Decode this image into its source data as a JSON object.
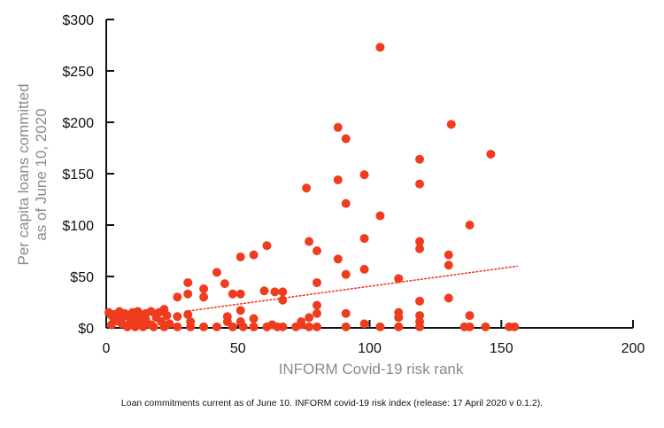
{
  "chart_data": {
    "type": "scatter",
    "xlabel": "INFORM Covid-19 risk rank",
    "ylabel": "Per capita loans committed\nas of June 10, 2020",
    "xlim": [
      0,
      200
    ],
    "ylim": [
      0,
      300
    ],
    "xticks": [
      0,
      50,
      100,
      150,
      200
    ],
    "yticks": [
      0,
      50,
      100,
      150,
      200,
      250,
      300
    ],
    "ytick_labels": [
      "$0",
      "$50",
      "$100",
      "$150",
      "$200",
      "$250",
      "$300"
    ],
    "grid": false,
    "legend": "none",
    "point_color": "#f03c1e",
    "trendline": {
      "style": "dotted",
      "color": "#f03c1e",
      "x": [
        30,
        156
      ],
      "y": [
        16,
        60
      ]
    },
    "points": [
      [
        1,
        15
      ],
      [
        2,
        12
      ],
      [
        2,
        3
      ],
      [
        3,
        8
      ],
      [
        3,
        13
      ],
      [
        4,
        11
      ],
      [
        5,
        6
      ],
      [
        5,
        16
      ],
      [
        6,
        10
      ],
      [
        6,
        4
      ],
      [
        7,
        14
      ],
      [
        8,
        12
      ],
      [
        8,
        1
      ],
      [
        9,
        5
      ],
      [
        10,
        15
      ],
      [
        10,
        8
      ],
      [
        11,
        1
      ],
      [
        12,
        16
      ],
      [
        12,
        11
      ],
      [
        13,
        5
      ],
      [
        14,
        1
      ],
      [
        15,
        14
      ],
      [
        15,
        8
      ],
      [
        17,
        16
      ],
      [
        17,
        3
      ],
      [
        18,
        1
      ],
      [
        19,
        10
      ],
      [
        20,
        15
      ],
      [
        21,
        6
      ],
      [
        22,
        1
      ],
      [
        22,
        18
      ],
      [
        23,
        12
      ],
      [
        24,
        4
      ],
      [
        27,
        1
      ],
      [
        27,
        11
      ],
      [
        27,
        30
      ],
      [
        31,
        44
      ],
      [
        31,
        33
      ],
      [
        31,
        13
      ],
      [
        32,
        1
      ],
      [
        32,
        6
      ],
      [
        37,
        38
      ],
      [
        37,
        30
      ],
      [
        37,
        1
      ],
      [
        42,
        54
      ],
      [
        42,
        1
      ],
      [
        45,
        43
      ],
      [
        46,
        11
      ],
      [
        46,
        6
      ],
      [
        48,
        33
      ],
      [
        48,
        1
      ],
      [
        51,
        33
      ],
      [
        51,
        17
      ],
      [
        51,
        6
      ],
      [
        51,
        69
      ],
      [
        52,
        1
      ],
      [
        56,
        71
      ],
      [
        56,
        9
      ],
      [
        56,
        1
      ],
      [
        60,
        36
      ],
      [
        61,
        80
      ],
      [
        61,
        1
      ],
      [
        63,
        3
      ],
      [
        64,
        35
      ],
      [
        65,
        1
      ],
      [
        67,
        35
      ],
      [
        67,
        27
      ],
      [
        67,
        1
      ],
      [
        72,
        1
      ],
      [
        74,
        3
      ],
      [
        74,
        6
      ],
      [
        76,
        136
      ],
      [
        77,
        84
      ],
      [
        77,
        10
      ],
      [
        77,
        1
      ],
      [
        80,
        75
      ],
      [
        80,
        44
      ],
      [
        80,
        22
      ],
      [
        80,
        14
      ],
      [
        80,
        1
      ],
      [
        88,
        195
      ],
      [
        88,
        144
      ],
      [
        88,
        67
      ],
      [
        91,
        184
      ],
      [
        91,
        121
      ],
      [
        91,
        52
      ],
      [
        91,
        14
      ],
      [
        91,
        1
      ],
      [
        98,
        149
      ],
      [
        98,
        87
      ],
      [
        98,
        57
      ],
      [
        98,
        4
      ],
      [
        104,
        273
      ],
      [
        104,
        109
      ],
      [
        104,
        1
      ],
      [
        111,
        48
      ],
      [
        111,
        15
      ],
      [
        111,
        10
      ],
      [
        111,
        1
      ],
      [
        119,
        164
      ],
      [
        119,
        140
      ],
      [
        119,
        84
      ],
      [
        119,
        77
      ],
      [
        119,
        26
      ],
      [
        119,
        12
      ],
      [
        119,
        6
      ],
      [
        119,
        1
      ],
      [
        131,
        198
      ],
      [
        130,
        71
      ],
      [
        130,
        61
      ],
      [
        130,
        29
      ],
      [
        136,
        1
      ],
      [
        138,
        100
      ],
      [
        138,
        12
      ],
      [
        138,
        1
      ],
      [
        146,
        169
      ],
      [
        144,
        1
      ],
      [
        153,
        1
      ],
      [
        155,
        1
      ]
    ]
  },
  "footnote": "Loan commitments current as of June 10. INFORM covid-19 risk index (release: 17 April 2020 v 0.1.2)."
}
